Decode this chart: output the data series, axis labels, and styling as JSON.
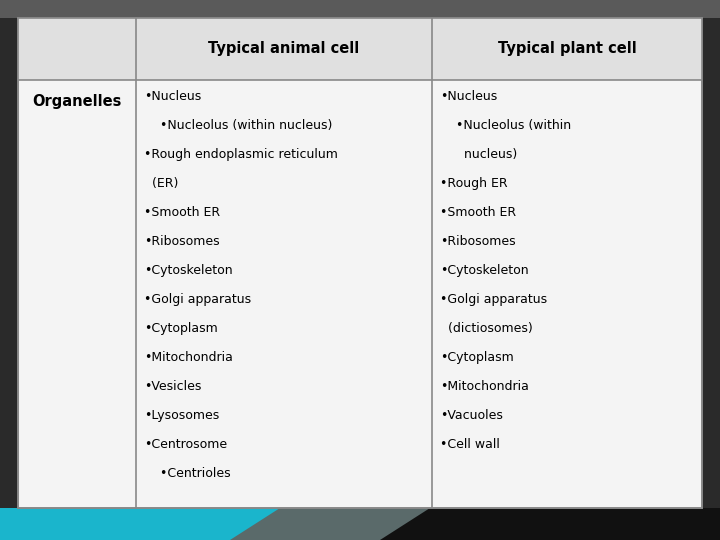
{
  "header_row": [
    "",
    "Typical animal cell",
    "Typical plant cell"
  ],
  "row_label": "Organelles",
  "animal_cell_lines": [
    "•Nucleus",
    "    •Nucleolus (within nucleus)",
    "•Rough endoplasmic reticulum",
    "  (ER)",
    "•Smooth ER",
    "•Ribosomes",
    "•Cytoskeleton",
    "•Golgi apparatus",
    "•Cytoplasm",
    "•Mitochondria",
    "•Vesicles",
    "•Lysosomes",
    "•Centrosome",
    "    •Centrioles"
  ],
  "plant_cell_lines": [
    "•Nucleus",
    "    •Nucleolus (within",
    "      nucleus)",
    "•Rough ER",
    "•Smooth ER",
    "•Ribosomes",
    "•Cytoskeleton",
    "•Golgi apparatus",
    "  (dictiosomes)",
    "•Cytoplasm",
    "•Mitochondria",
    "•Vacuoles",
    "•Cell wall"
  ],
  "top_bar_color": "#5a5a5a",
  "table_bg": "#f4f4f4",
  "header_bg": "#e0e0e0",
  "border_color": "#888888",
  "text_color": "#000000",
  "bottom_teal": "#1ab5cc",
  "bottom_dark": "#1a1a1a",
  "bottom_mid": "#5a6a6a"
}
